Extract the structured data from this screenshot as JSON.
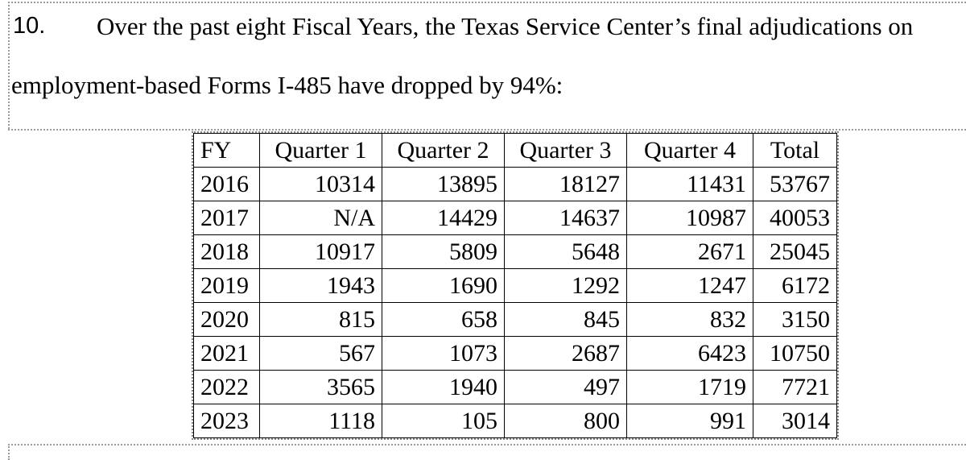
{
  "paragraph": {
    "number": "10.",
    "line1": "Over the past eight Fiscal Years, the Texas Service Center’s final adjudications on",
    "line2": "employment-based Forms I-485 have dropped by 94%:"
  },
  "table": {
    "headers": [
      "FY",
      "Quarter 1",
      "Quarter 2",
      "Quarter 3",
      "Quarter 4",
      "Total"
    ],
    "rows": [
      [
        "2016",
        "10314",
        "13895",
        "18127",
        "11431",
        "53767"
      ],
      [
        "2017",
        "N/A",
        "14429",
        "14637",
        "10987",
        "40053"
      ],
      [
        "2018",
        "10917",
        "5809",
        "5648",
        "2671",
        "25045"
      ],
      [
        "2019",
        "1943",
        "1690",
        "1292",
        "1247",
        "6172"
      ],
      [
        "2020",
        "815",
        "658",
        "845",
        "832",
        "3150"
      ],
      [
        "2021",
        "567",
        "1073",
        "2687",
        "6423",
        "10750"
      ],
      [
        "2022",
        "3565",
        "1940",
        "497",
        "1719",
        "7721"
      ],
      [
        "2023",
        "1118",
        "105",
        "800",
        "991",
        "3014"
      ]
    ]
  }
}
